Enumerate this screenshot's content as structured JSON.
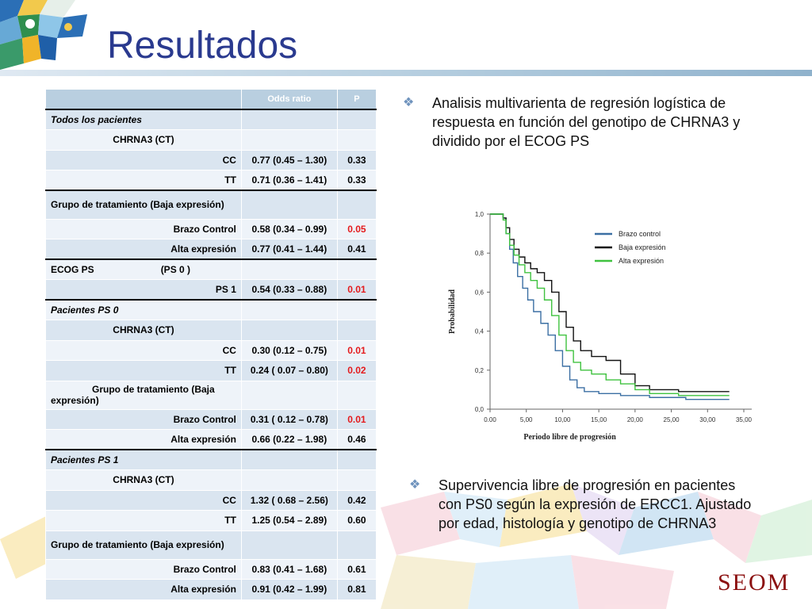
{
  "slide": {
    "title": "Resultados",
    "brand": "SEOM"
  },
  "table": {
    "headers": [
      "",
      "Odds ratio",
      "P"
    ],
    "rows": [
      {
        "label": "Todos los pacientes",
        "or": "",
        "p": ""
      },
      {
        "label": "CHRNA3 (CT)",
        "or": "",
        "p": ""
      },
      {
        "label": "CC",
        "or": "0.77 (0.45 – 1.30)",
        "p": "0.33"
      },
      {
        "label": "TT",
        "or": "0.71 (0.36 – 1.41)",
        "p": "0.33"
      },
      {
        "label": "Grupo de tratamiento (Baja expresión)",
        "or": "",
        "p": ""
      },
      {
        "label": "Brazo Control",
        "or": "0.58 (0.34 – 0.99)",
        "p": "0.05"
      },
      {
        "label": "Alta expresión",
        "or": "0.77 (0.41 – 1.44)",
        "p": "0.41"
      },
      {
        "label": "ECOG PS",
        "label2": "(PS 0 )",
        "or": "",
        "p": ""
      },
      {
        "label": "PS 1",
        "or": "0.54 (0.33 – 0.88)",
        "p": "0.01"
      },
      {
        "label": "Pacientes PS 0",
        "or": "",
        "p": ""
      },
      {
        "label": "CHRNA3 (CT)",
        "or": "",
        "p": ""
      },
      {
        "label": "CC",
        "or": "0.30 (0.12 – 0.75)",
        "p": "0.01"
      },
      {
        "label": "TT",
        "or": "0.24 ( 0.07 – 0.80)",
        "p": "0.02"
      },
      {
        "label": "Grupo de tratamiento (Baja expresión)",
        "or": "",
        "p": ""
      },
      {
        "label": "Brazo Control",
        "or": "0.31 ( 0.12 – 0.78)",
        "p": "0.01"
      },
      {
        "label": "Alta expresión",
        "or": "0.66 (0.22 – 1.98)",
        "p": "0.46"
      },
      {
        "label": "Pacientes PS 1",
        "or": "",
        "p": ""
      },
      {
        "label": "CHRNA3 (CT)",
        "or": "",
        "p": ""
      },
      {
        "label": "CC",
        "or": "1.32 ( 0.68 – 2.56)",
        "p": "0.42"
      },
      {
        "label": "TT",
        "or": "1.25 (0.54 – 2.89)",
        "p": "0.60"
      },
      {
        "label": "Grupo de tratamiento (Baja expresión)",
        "or": "",
        "p": ""
      },
      {
        "label": "Brazo Control",
        "or": "0.83 (0.41 – 1.68)",
        "p": "0.61"
      },
      {
        "label": "Alta expresión",
        "or": "0.91 (0.42 – 1.99)",
        "p": "0.81"
      }
    ]
  },
  "bullets": [
    {
      "lines": [
        "Analisis multivarienta de regresión logística de",
        "respuesta en función del genotipo de CHRNA3 y",
        "dividido por el ECOG PS"
      ]
    },
    {
      "lines": [
        "Supervivencia  libre de progresión en pacientes",
        "con PS0 según la expresión de ERCC1. Ajustado",
        "por edad, histología y genotipo de CHRNA3"
      ]
    }
  ],
  "chart_data": {
    "type": "line",
    "xlabel": "Periodo libre de progresión",
    "ylabel": "Probabilidad",
    "xlim": [
      0,
      35
    ],
    "ylim": [
      0,
      1
    ],
    "xticks": [
      "0.00",
      "5,00",
      "10,00",
      "15,00",
      "20,00",
      "25,00",
      "30,00",
      "35,00"
    ],
    "yticks": [
      "0,0",
      "0,2",
      "0,4",
      "0,6",
      "0,8",
      "1,0"
    ],
    "legend_position": "top-right",
    "series": [
      {
        "name": "Brazo control",
        "color": "#3b6fa3",
        "x": [
          0,
          1,
          1.8,
          2.2,
          2.7,
          3.2,
          3.8,
          4.5,
          5.2,
          6,
          7,
          8,
          9,
          10,
          11,
          12,
          13,
          15,
          18,
          22,
          27,
          33
        ],
        "y": [
          1,
          1,
          0.98,
          0.9,
          0.82,
          0.75,
          0.68,
          0.62,
          0.56,
          0.5,
          0.44,
          0.38,
          0.3,
          0.22,
          0.15,
          0.11,
          0.09,
          0.08,
          0.07,
          0.06,
          0.05,
          0.05
        ]
      },
      {
        "name": "Baja expresión",
        "color": "#111111",
        "x": [
          0,
          1,
          1.8,
          2.2,
          2.7,
          3.3,
          4,
          4.8,
          5.6,
          6.5,
          7.5,
          8.5,
          9.5,
          10.5,
          11.5,
          12.5,
          14,
          16,
          18,
          20,
          22,
          26,
          33
        ],
        "y": [
          1,
          1,
          0.98,
          0.93,
          0.87,
          0.82,
          0.78,
          0.75,
          0.72,
          0.7,
          0.66,
          0.6,
          0.5,
          0.42,
          0.35,
          0.3,
          0.27,
          0.25,
          0.18,
          0.12,
          0.1,
          0.09,
          0.09
        ]
      },
      {
        "name": "Alta expresión",
        "color": "#3fc23f",
        "x": [
          0,
          1,
          1.8,
          2.2,
          2.7,
          3.3,
          4,
          4.8,
          5.6,
          6.5,
          7.5,
          8.5,
          9.5,
          10.5,
          11.5,
          12.5,
          14,
          16,
          18,
          20,
          22,
          26,
          33
        ],
        "y": [
          1,
          1,
          0.97,
          0.9,
          0.84,
          0.79,
          0.74,
          0.7,
          0.66,
          0.62,
          0.56,
          0.48,
          0.38,
          0.3,
          0.24,
          0.2,
          0.18,
          0.15,
          0.13,
          0.1,
          0.08,
          0.07,
          0.07
        ]
      }
    ]
  }
}
